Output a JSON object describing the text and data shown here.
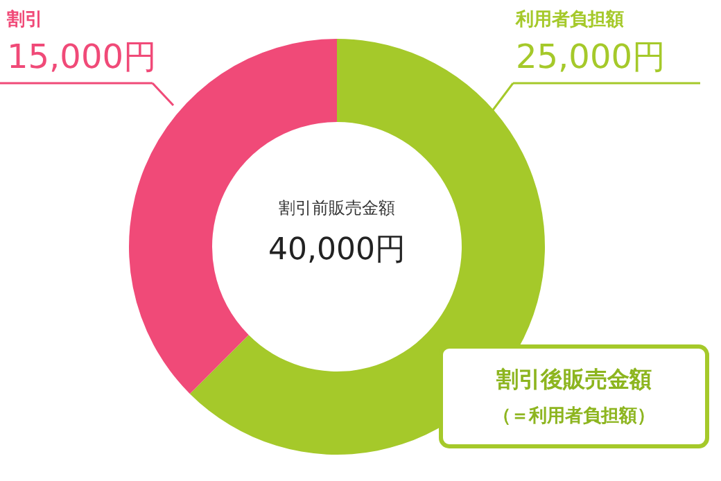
{
  "chart_data": {
    "type": "donut",
    "categories": [
      "利用者負担額",
      "割引"
    ],
    "values": [
      25000,
      15000
    ],
    "colors": [
      "#a5c92a",
      "#f04a78"
    ],
    "value_labels": [
      "25,000円",
      "15,000円"
    ],
    "annotations": [
      "割引前販売金額",
      "40,000円",
      "割引後販売金額",
      "（＝利用者負担額）"
    ]
  }
}
